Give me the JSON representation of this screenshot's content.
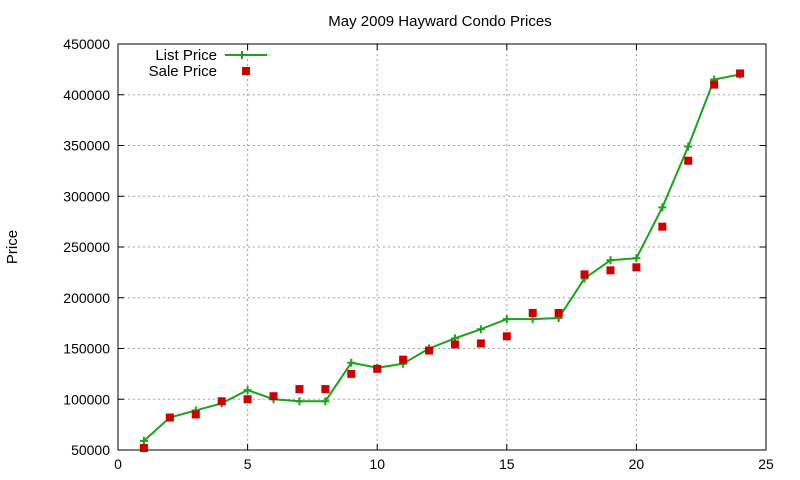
{
  "chart_data": {
    "type": "line",
    "title": "May 2009 Hayward Condo Prices",
    "xlabel": "",
    "ylabel": "Price",
    "xlim": [
      0,
      25
    ],
    "ylim": [
      50000,
      450000
    ],
    "xticks": [
      "0",
      "5",
      "10",
      "15",
      "20",
      "25"
    ],
    "xtick_values": [
      0,
      5,
      10,
      15,
      20,
      25
    ],
    "yticks": [
      "50000",
      "100000",
      "150000",
      "200000",
      "250000",
      "300000",
      "350000",
      "400000",
      "450000"
    ],
    "ytick_values": [
      50000,
      100000,
      150000,
      200000,
      250000,
      300000,
      350000,
      400000,
      450000
    ],
    "grid": true,
    "legend_position": "top-left",
    "series": [
      {
        "name": "List Price",
        "style": "line+plus",
        "color": "#1aa31a",
        "x": [
          1,
          2,
          3,
          4,
          5,
          6,
          7,
          8,
          9,
          10,
          11,
          12,
          13,
          14,
          15,
          16,
          17,
          18,
          19,
          20,
          21,
          22,
          23,
          24
        ],
        "y": [
          59000,
          82000,
          89000,
          96000,
          109000,
          100000,
          98000,
          98000,
          136000,
          131000,
          135000,
          150000,
          160000,
          169000,
          179000,
          179000,
          180000,
          219000,
          237000,
          239000,
          289000,
          349000,
          415000,
          420000
        ]
      },
      {
        "name": "Sale Price",
        "style": "square",
        "color": "#cc0000",
        "x": [
          1,
          2,
          3,
          4,
          5,
          6,
          7,
          8,
          9,
          10,
          11,
          12,
          13,
          14,
          15,
          16,
          17,
          18,
          19,
          20,
          21,
          22,
          23,
          24
        ],
        "y": [
          52000,
          82000,
          85000,
          98000,
          100000,
          103000,
          110000,
          110000,
          125000,
          130000,
          139000,
          148000,
          154000,
          155000,
          162000,
          185000,
          185000,
          223000,
          227000,
          230000,
          270000,
          335000,
          410000,
          421000
        ]
      }
    ]
  }
}
